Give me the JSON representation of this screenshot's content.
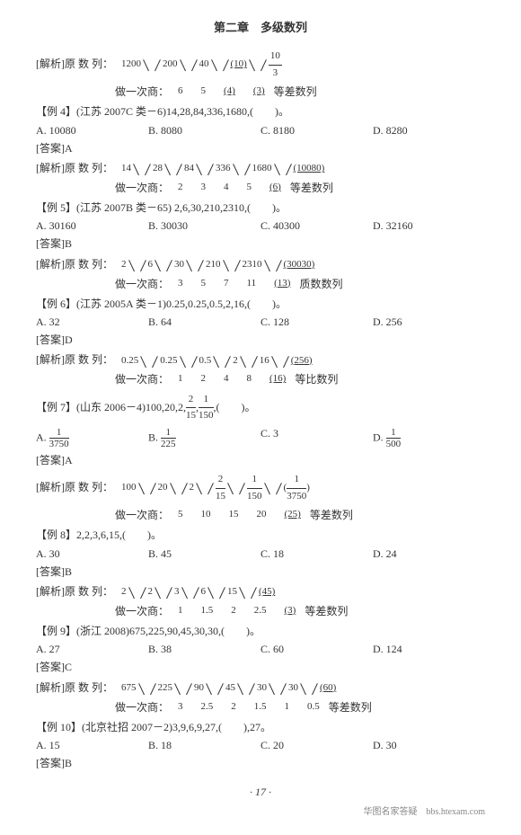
{
  "header": "第二章　多级数列",
  "pageNum": "· 17 ·",
  "footer": "华图名家答疑　bbs.htexam.com",
  "labels": {
    "analysis": "[解析]",
    "answer": "[答案]",
    "origSeq": "原 数 列：",
    "quotOnce": "做一次商：",
    "arithSeq": "等差数列",
    "geomSeq": "等比数列",
    "qualSeq": "质数数列"
  },
  "b0": {
    "seq": [
      "1200",
      "200",
      "40",
      "(10)",
      "10/3"
    ],
    "quot": [
      "6",
      "5",
      "(4)",
      "(3)"
    ]
  },
  "ex4": {
    "q": "【例 4】(江苏 2007C 类－6)14,28,84,336,1680,(　　)。",
    "a": "A",
    "opts": [
      "A. 10080",
      "B. 8080",
      "C. 8180",
      "D. 8280"
    ],
    "seq": [
      "14",
      "28",
      "84",
      "336",
      "1680",
      "(10080)"
    ],
    "quot": [
      "2",
      "3",
      "4",
      "5",
      "(6)"
    ]
  },
  "ex5": {
    "q": "【例 5】(江苏 2007B 类－65) 2,6,30,210,2310,(　　)。",
    "a": "B",
    "opts": [
      "A. 30160",
      "B. 30030",
      "C. 40300",
      "D. 32160"
    ],
    "seq": [
      "2",
      "6",
      "30",
      "210",
      "2310",
      "(30030)"
    ],
    "quot": [
      "3",
      "5",
      "7",
      "11",
      "(13)"
    ]
  },
  "ex6": {
    "q": "【例 6】(江苏 2005A 类－1)0.25,0.25,0.5,2,16,(　　)。",
    "a": "D",
    "opts": [
      "A. 32",
      "B. 64",
      "C. 128",
      "D. 256"
    ],
    "seq": [
      "0.25",
      "0.25",
      "0.5",
      "2",
      "16",
      "(256)"
    ],
    "quot": [
      "1",
      "2",
      "4",
      "8",
      "(16)"
    ]
  },
  "ex7": {
    "q": "【例 7】(山东 2006－4)100,20,2,2/15,1/150,(　　)。",
    "a": "A",
    "opts": [
      "A. 1/3750",
      "B. 1/225",
      "C. 3",
      "D. 1/500"
    ],
    "seq": [
      "100",
      "20",
      "2",
      "2/15",
      "1/150",
      "(1/3750)"
    ],
    "quot": [
      "5",
      "10",
      "15",
      "20",
      "(25)"
    ]
  },
  "ex8": {
    "q": "【例 8】2,2,3,6,15,(　　)。",
    "a": "B",
    "opts": [
      "A. 30",
      "B. 45",
      "C. 18",
      "D. 24"
    ],
    "seq": [
      "2",
      "2",
      "3",
      "6",
      "15",
      "(45)"
    ],
    "quot": [
      "1",
      "1.5",
      "2",
      "2.5",
      "(3)"
    ]
  },
  "ex9": {
    "q": "【例 9】(浙江 2008)675,225,90,45,30,30,(　　)。",
    "a": "C",
    "opts": [
      "A. 27",
      "B. 38",
      "C. 60",
      "D. 124"
    ],
    "seq": [
      "675",
      "225",
      "90",
      "45",
      "30",
      "30",
      "(60)"
    ],
    "quot": [
      "3",
      "2.5",
      "2",
      "1.5",
      "1",
      "0.5"
    ]
  },
  "ex10": {
    "q": "【例 10】(北京社招 2007－2)3,9,6,9,27,(　　),27。",
    "a": "B",
    "opts": [
      "A. 15",
      "B. 18",
      "C. 20",
      "D. 30"
    ]
  }
}
